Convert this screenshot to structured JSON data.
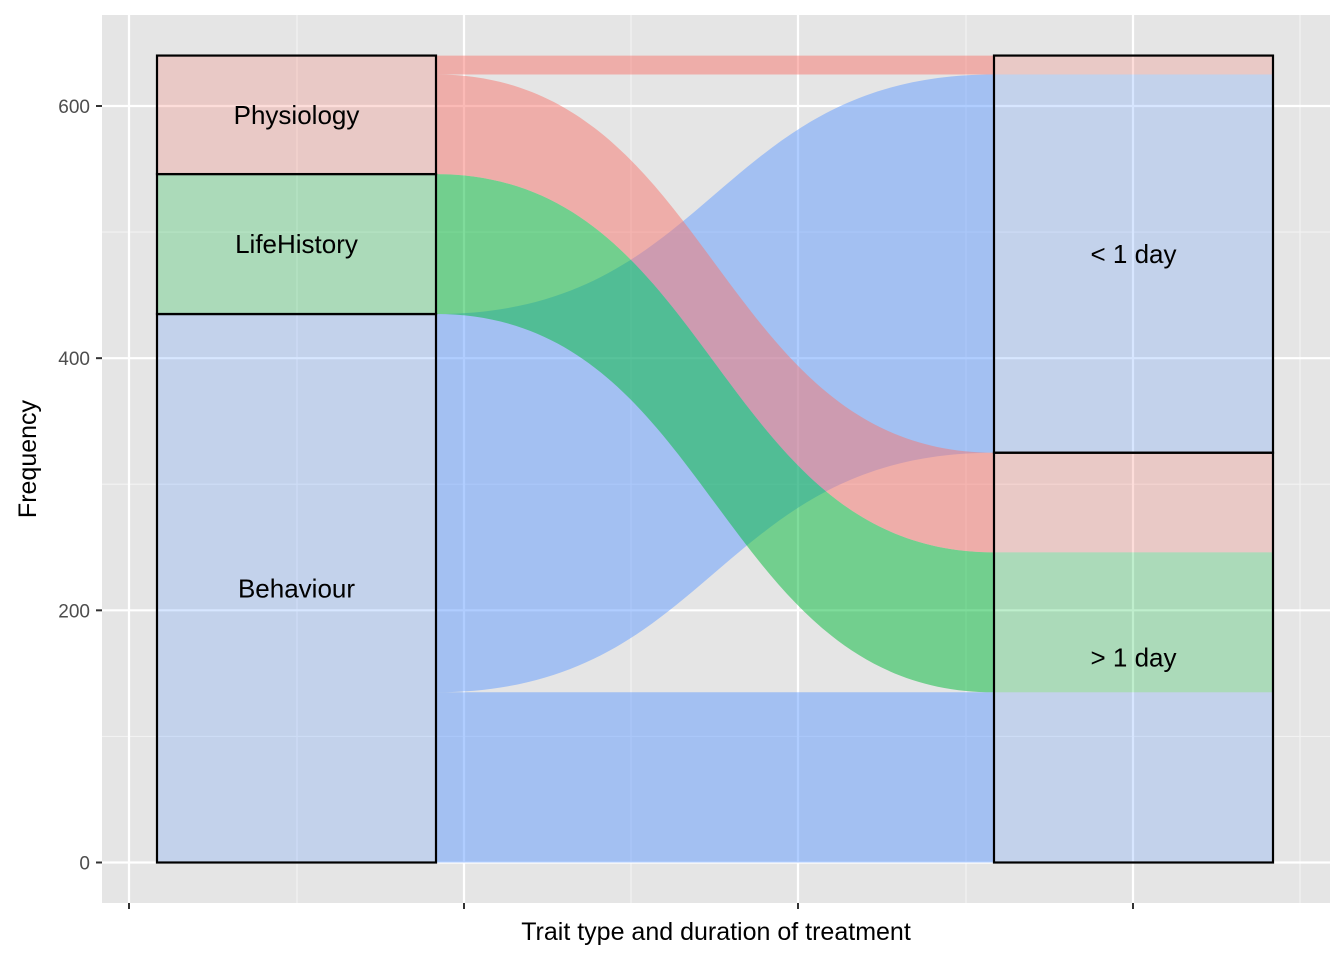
{
  "chart_data": {
    "type": "alluvial",
    "xlabel": "Trait type and duration of treatment",
    "ylabel": "Frequency",
    "ylim": [
      -40,
      655
    ],
    "y_ticks": [
      0,
      200,
      400,
      600
    ],
    "axes": [
      "Trait type",
      "Duration of treatment"
    ],
    "colors": {
      "Physiology": "#F8766D",
      "LifeHistory": "#00BA38",
      "Behaviour": "#619CFF"
    },
    "strata": {
      "left": [
        {
          "label": "Behaviour",
          "from": 0,
          "to": 435
        },
        {
          "label": "LifeHistory",
          "from": 435,
          "to": 546
        },
        {
          "label": "Physiology",
          "from": 546,
          "to": 640
        }
      ],
      "right": [
        {
          "label": "> 1 day",
          "from": 0,
          "to": 325
        },
        {
          "label": "< 1 day",
          "from": 325,
          "to": 640
        }
      ]
    },
    "flows": [
      {
        "trait": "Behaviour",
        "duration": "> 1 day",
        "value": 135
      },
      {
        "trait": "Behaviour",
        "duration": "< 1 day",
        "value": 300
      },
      {
        "trait": "LifeHistory",
        "duration": "> 1 day",
        "value": 111
      },
      {
        "trait": "LifeHistory",
        "duration": "< 1 day",
        "value": 0
      },
      {
        "trait": "Physiology",
        "duration": "> 1 day",
        "value": 79
      },
      {
        "trait": "Physiology",
        "duration": "< 1 day",
        "value": 15
      }
    ],
    "legend": "none",
    "grid": true
  }
}
